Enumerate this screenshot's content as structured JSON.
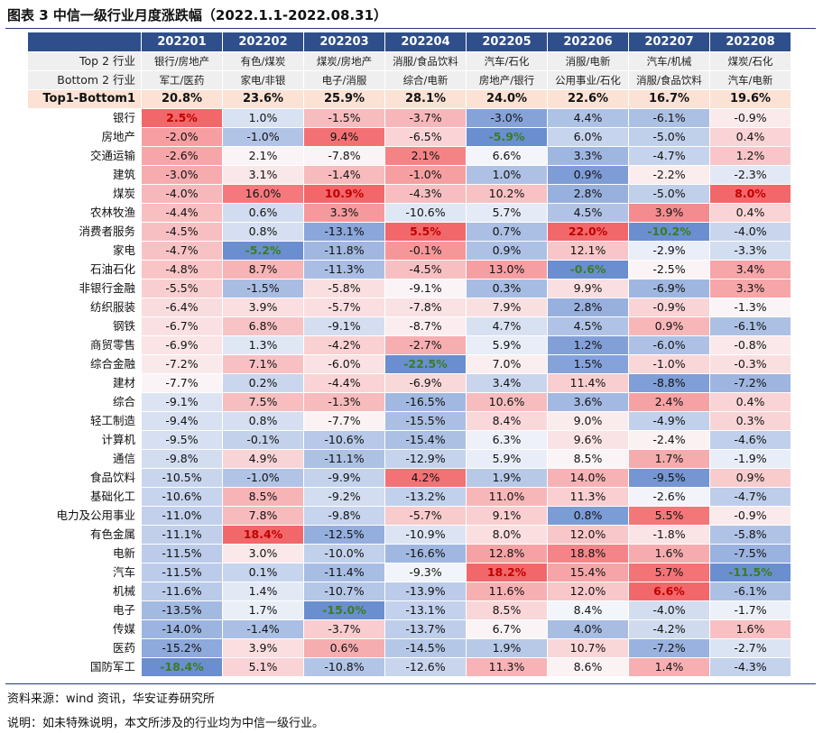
{
  "title": "图表 3  中信一级行业月度涨跌幅（2022.1.1-2022.08.31）",
  "columns": [
    "202201",
    "202202",
    "202203",
    "202204",
    "202205",
    "202206",
    "202207",
    "202208"
  ],
  "top2": {
    "label": "Top 2 行业",
    "values": [
      "银行/房地产",
      "有色/煤炭",
      "煤炭/房地产",
      "消服/食品饮料",
      "汽车/石化",
      "消服/电新",
      "汽车/机械",
      "煤炭/石化"
    ]
  },
  "bottom2": {
    "label": "Bottom 2 行业",
    "values": [
      "军工/医药",
      "家电/非银",
      "电子/消服",
      "综合/电新",
      "房地产/银行",
      "公用事业/石化",
      "消服/食品饮料",
      "汽车/电新"
    ]
  },
  "spread": {
    "label": "Top1-Bottom1",
    "values": [
      "20.8%",
      "23.6%",
      "25.9%",
      "28.1%",
      "24.0%",
      "22.6%",
      "16.7%",
      "19.6%"
    ]
  },
  "rows": [
    {
      "name": "银行",
      "values": [
        "2.5%",
        "1.0%",
        "-1.5%",
        "-3.7%",
        "-3.0%",
        "4.4%",
        "-6.1%",
        "-0.9%"
      ]
    },
    {
      "name": "房地产",
      "values": [
        "-2.0%",
        "-1.0%",
        "9.4%",
        "-6.5%",
        "-5.9%",
        "6.0%",
        "-5.0%",
        "0.4%"
      ]
    },
    {
      "name": "交通运输",
      "values": [
        "-2.6%",
        "2.1%",
        "-7.8%",
        "2.1%",
        "6.6%",
        "3.3%",
        "-4.7%",
        "1.2%"
      ]
    },
    {
      "name": "建筑",
      "values": [
        "-3.0%",
        "3.1%",
        "-1.4%",
        "-1.0%",
        "1.0%",
        "0.9%",
        "-2.2%",
        "-2.3%"
      ]
    },
    {
      "name": "煤炭",
      "values": [
        "-4.0%",
        "16.0%",
        "10.9%",
        "-4.3%",
        "10.2%",
        "2.8%",
        "-5.0%",
        "8.0%"
      ]
    },
    {
      "name": "农林牧渔",
      "values": [
        "-4.4%",
        "0.6%",
        "3.3%",
        "-10.6%",
        "5.7%",
        "4.5%",
        "3.9%",
        "0.4%"
      ]
    },
    {
      "name": "消费者服务",
      "values": [
        "-4.5%",
        "0.8%",
        "-13.1%",
        "5.5%",
        "0.7%",
        "22.0%",
        "-10.2%",
        "-4.0%"
      ]
    },
    {
      "name": "家电",
      "values": [
        "-4.7%",
        "-5.2%",
        "-11.8%",
        "-0.1%",
        "0.9%",
        "12.1%",
        "-2.9%",
        "-3.3%"
      ]
    },
    {
      "name": "石油石化",
      "values": [
        "-4.8%",
        "8.7%",
        "-11.3%",
        "-4.5%",
        "13.0%",
        "-0.6%",
        "-2.5%",
        "3.4%"
      ]
    },
    {
      "name": "非银行金融",
      "values": [
        "-5.5%",
        "-1.5%",
        "-5.8%",
        "-9.1%",
        "0.3%",
        "9.9%",
        "-6.9%",
        "3.3%"
      ]
    },
    {
      "name": "纺织服装",
      "values": [
        "-6.4%",
        "3.9%",
        "-5.7%",
        "-7.8%",
        "7.9%",
        "2.8%",
        "-0.9%",
        "-1.3%"
      ]
    },
    {
      "name": "钢铁",
      "values": [
        "-6.7%",
        "6.8%",
        "-9.1%",
        "-8.7%",
        "4.7%",
        "4.5%",
        "0.9%",
        "-6.1%"
      ]
    },
    {
      "name": "商贸零售",
      "values": [
        "-6.9%",
        "1.3%",
        "-4.2%",
        "-2.7%",
        "5.9%",
        "1.2%",
        "-6.0%",
        "-0.8%"
      ]
    },
    {
      "name": "综合金融",
      "values": [
        "-7.2%",
        "7.1%",
        "-6.0%",
        "-22.5%",
        "7.0%",
        "1.5%",
        "-1.0%",
        "-0.3%"
      ]
    },
    {
      "name": "建材",
      "values": [
        "-7.7%",
        "0.2%",
        "-4.4%",
        "-6.9%",
        "3.4%",
        "11.4%",
        "-8.8%",
        "-7.2%"
      ]
    },
    {
      "name": "综合",
      "values": [
        "-9.1%",
        "7.5%",
        "-1.3%",
        "-16.5%",
        "10.6%",
        "3.6%",
        "2.4%",
        "0.4%"
      ]
    },
    {
      "name": "轻工制造",
      "values": [
        "-9.4%",
        "0.8%",
        "-7.7%",
        "-15.5%",
        "8.4%",
        "9.0%",
        "-4.9%",
        "0.3%"
      ]
    },
    {
      "name": "计算机",
      "values": [
        "-9.5%",
        "-0.1%",
        "-10.6%",
        "-15.4%",
        "6.3%",
        "9.6%",
        "-2.4%",
        "-4.6%"
      ]
    },
    {
      "name": "通信",
      "values": [
        "-9.8%",
        "4.9%",
        "-11.1%",
        "-12.9%",
        "5.9%",
        "8.5%",
        "1.7%",
        "-1.9%"
      ]
    },
    {
      "name": "食品饮料",
      "values": [
        "-10.5%",
        "-1.0%",
        "-9.9%",
        "4.2%",
        "1.9%",
        "14.0%",
        "-9.5%",
        "0.9%"
      ]
    },
    {
      "name": "基础化工",
      "values": [
        "-10.6%",
        "8.5%",
        "-9.2%",
        "-13.2%",
        "11.0%",
        "11.3%",
        "-2.6%",
        "-4.7%"
      ]
    },
    {
      "name": "电力及公用事业",
      "values": [
        "-11.0%",
        "7.8%",
        "-9.8%",
        "-5.7%",
        "9.1%",
        "0.8%",
        "5.5%",
        "-0.9%"
      ]
    },
    {
      "name": "有色金属",
      "values": [
        "-11.1%",
        "18.4%",
        "-12.5%",
        "-10.9%",
        "8.0%",
        "12.0%",
        "-1.8%",
        "-5.8%"
      ]
    },
    {
      "name": "电新",
      "values": [
        "-11.5%",
        "3.0%",
        "-10.0%",
        "-16.6%",
        "12.8%",
        "18.8%",
        "1.6%",
        "-7.5%"
      ]
    },
    {
      "name": "汽车",
      "values": [
        "-11.5%",
        "0.1%",
        "-11.4%",
        "-9.3%",
        "18.2%",
        "15.4%",
        "5.7%",
        "-11.5%"
      ]
    },
    {
      "name": "机械",
      "values": [
        "-11.6%",
        "1.4%",
        "-10.7%",
        "-13.9%",
        "11.6%",
        "12.0%",
        "6.6%",
        "-6.1%"
      ]
    },
    {
      "name": "电子",
      "values": [
        "-13.5%",
        "1.7%",
        "-15.0%",
        "-13.1%",
        "8.5%",
        "8.4%",
        "-4.0%",
        "-1.7%"
      ]
    },
    {
      "name": "传媒",
      "values": [
        "-14.0%",
        "-1.4%",
        "-3.7%",
        "-13.7%",
        "6.7%",
        "4.0%",
        "-4.2%",
        "1.6%"
      ]
    },
    {
      "name": "医药",
      "values": [
        "-15.2%",
        "3.9%",
        "0.6%",
        "-14.5%",
        "1.9%",
        "10.7%",
        "-7.2%",
        "-2.7%"
      ]
    },
    {
      "name": "国防军工",
      "values": [
        "-18.4%",
        "5.1%",
        "-10.8%",
        "-12.6%",
        "11.3%",
        "8.6%",
        "1.4%",
        "-4.3%"
      ]
    }
  ],
  "footer": {
    "source": "资料来源：wind 资讯，华安证券研究所",
    "note": "说明：如未特殊说明，本文所涉及的行业均为中信一级行业。"
  }
}
